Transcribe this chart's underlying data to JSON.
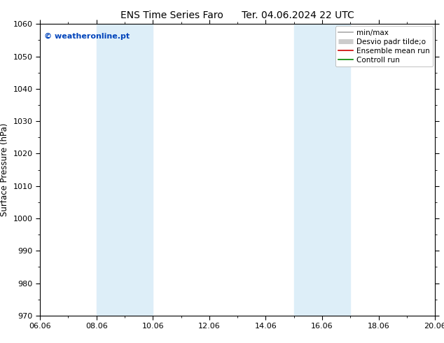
{
  "title": "ENS Time Series Faro      Ter. 04.06.2024 22 UTC",
  "ylabel": "Surface Pressure (hPa)",
  "ylim": [
    970,
    1060
  ],
  "yticks": [
    970,
    980,
    990,
    1000,
    1010,
    1020,
    1030,
    1040,
    1050,
    1060
  ],
  "xlim": [
    0,
    14
  ],
  "xtick_labels": [
    "06.06",
    "08.06",
    "10.06",
    "12.06",
    "14.06",
    "16.06",
    "18.06",
    "20.06"
  ],
  "xtick_positions": [
    0,
    2,
    4,
    6,
    8,
    10,
    12,
    14
  ],
  "shaded_bands": [
    {
      "xmin": 2,
      "xmax": 4
    },
    {
      "xmin": 9,
      "xmax": 11
    }
  ],
  "shade_color": "#ddeef8",
  "watermark": "© weatheronline.pt",
  "watermark_color": "#0044bb",
  "legend_labels": [
    "min/max",
    "Desvio padr tilde;o",
    "Ensemble mean run",
    "Controll run"
  ],
  "legend_colors": [
    "#aaaaaa",
    "#cccccc",
    "#cc0000",
    "#008800"
  ],
  "bg_color": "#ffffff",
  "plot_bg_color": "#ffffff",
  "title_fontsize": 10,
  "axis_label_fontsize": 8.5,
  "tick_fontsize": 8,
  "legend_fontsize": 7.5,
  "watermark_fontsize": 8
}
